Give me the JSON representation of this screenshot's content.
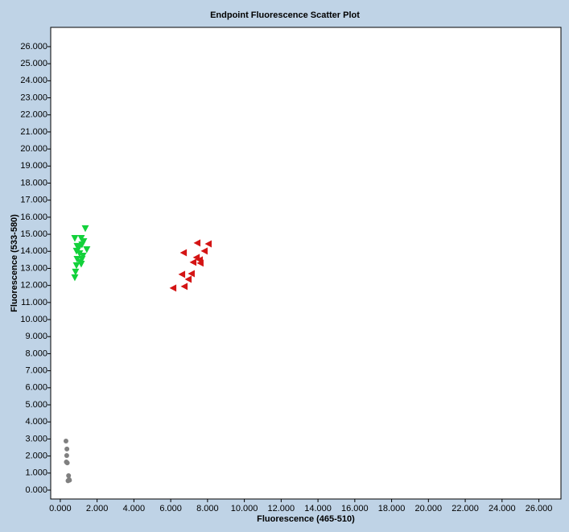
{
  "chart_data": {
    "type": "scatter",
    "title": "Endpoint Fluorescence Scatter Plot",
    "x_label": "Fluorescence (465-510)",
    "y_label": "Fluorescence (533-580)",
    "xlim": [
      -0.52,
      27.2
    ],
    "ylim": [
      -0.52,
      27.13
    ],
    "xticks": [
      {
        "value": 0,
        "label": "0.000"
      },
      {
        "value": 2,
        "label": "2.000"
      },
      {
        "value": 4,
        "label": "4.000"
      },
      {
        "value": 6,
        "label": "6.000"
      },
      {
        "value": 8,
        "label": "8.000"
      },
      {
        "value": 10,
        "label": "10.000"
      },
      {
        "value": 12,
        "label": "12.000"
      },
      {
        "value": 14,
        "label": "14.000"
      },
      {
        "value": 16,
        "label": "16.000"
      },
      {
        "value": 18,
        "label": "18.000"
      },
      {
        "value": 20,
        "label": "20.000"
      },
      {
        "value": 22,
        "label": "22.000"
      },
      {
        "value": 24,
        "label": "24.000"
      },
      {
        "value": 26,
        "label": "26.000"
      }
    ],
    "yticks": [
      {
        "value": 0,
        "label": "0.000"
      },
      {
        "value": 1,
        "label": "1.000"
      },
      {
        "value": 2,
        "label": "2.000"
      },
      {
        "value": 3,
        "label": "3.000"
      },
      {
        "value": 4,
        "label": "4.000"
      },
      {
        "value": 5,
        "label": "5.000"
      },
      {
        "value": 6,
        "label": "6.000"
      },
      {
        "value": 7,
        "label": "7.000"
      },
      {
        "value": 8,
        "label": "8.000"
      },
      {
        "value": 9,
        "label": "9.000"
      },
      {
        "value": 10,
        "label": "10.000"
      },
      {
        "value": 11,
        "label": "11.000"
      },
      {
        "value": 12,
        "label": "12.000"
      },
      {
        "value": 13,
        "label": "13.000"
      },
      {
        "value": 14,
        "label": "14.000"
      },
      {
        "value": 15,
        "label": "15.000"
      },
      {
        "value": 16,
        "label": "16.000"
      },
      {
        "value": 17,
        "label": "17.000"
      },
      {
        "value": 18,
        "label": "18.000"
      },
      {
        "value": 19,
        "label": "19.000"
      },
      {
        "value": 20,
        "label": "20.000"
      },
      {
        "value": 21,
        "label": "21.000"
      },
      {
        "value": 22,
        "label": "22.000"
      },
      {
        "value": 23,
        "label": "23.000"
      },
      {
        "value": 24,
        "label": "24.000"
      },
      {
        "value": 25,
        "label": "25.000"
      },
      {
        "value": 26,
        "label": "26.000"
      }
    ],
    "series": [
      {
        "color": "#808080",
        "marker": "circle",
        "x": [
          0.31,
          0.36,
          0.35,
          0.33,
          0.38,
          0.45,
          0.48,
          0.42,
          0.5
        ],
        "values": [
          2.88,
          2.41,
          2.03,
          1.65,
          1.6,
          0.85,
          0.62,
          0.55,
          0.58
        ]
      },
      {
        "color": "#13d13b",
        "marker": "triangle-down",
        "x": [
          1.36,
          0.79,
          1.14,
          0.92,
          1.18,
          1.44,
          0.88,
          1.05,
          1.23,
          0.92,
          1.09,
          0.88,
          1.14,
          0.83,
          0.79,
          1.27,
          1.01,
          1.18
        ],
        "values": [
          15.34,
          14.77,
          14.77,
          14.3,
          14.39,
          14.11,
          14.02,
          13.87,
          13.73,
          13.54,
          13.36,
          13.17,
          13.26,
          12.79,
          12.46,
          14.58,
          14.2,
          13.54
        ]
      },
      {
        "color": "#d41414",
        "marker": "triangle-left",
        "x": [
          6.13,
          6.74,
          6.61,
          6.96,
          7.13,
          6.7,
          7.22,
          7.4,
          7.57,
          7.61,
          7.83,
          7.44,
          8.05
        ],
        "values": [
          11.85,
          11.94,
          12.65,
          12.36,
          12.69,
          13.92,
          13.36,
          13.64,
          13.5,
          13.31,
          14.02,
          14.49,
          14.44
        ]
      }
    ]
  }
}
